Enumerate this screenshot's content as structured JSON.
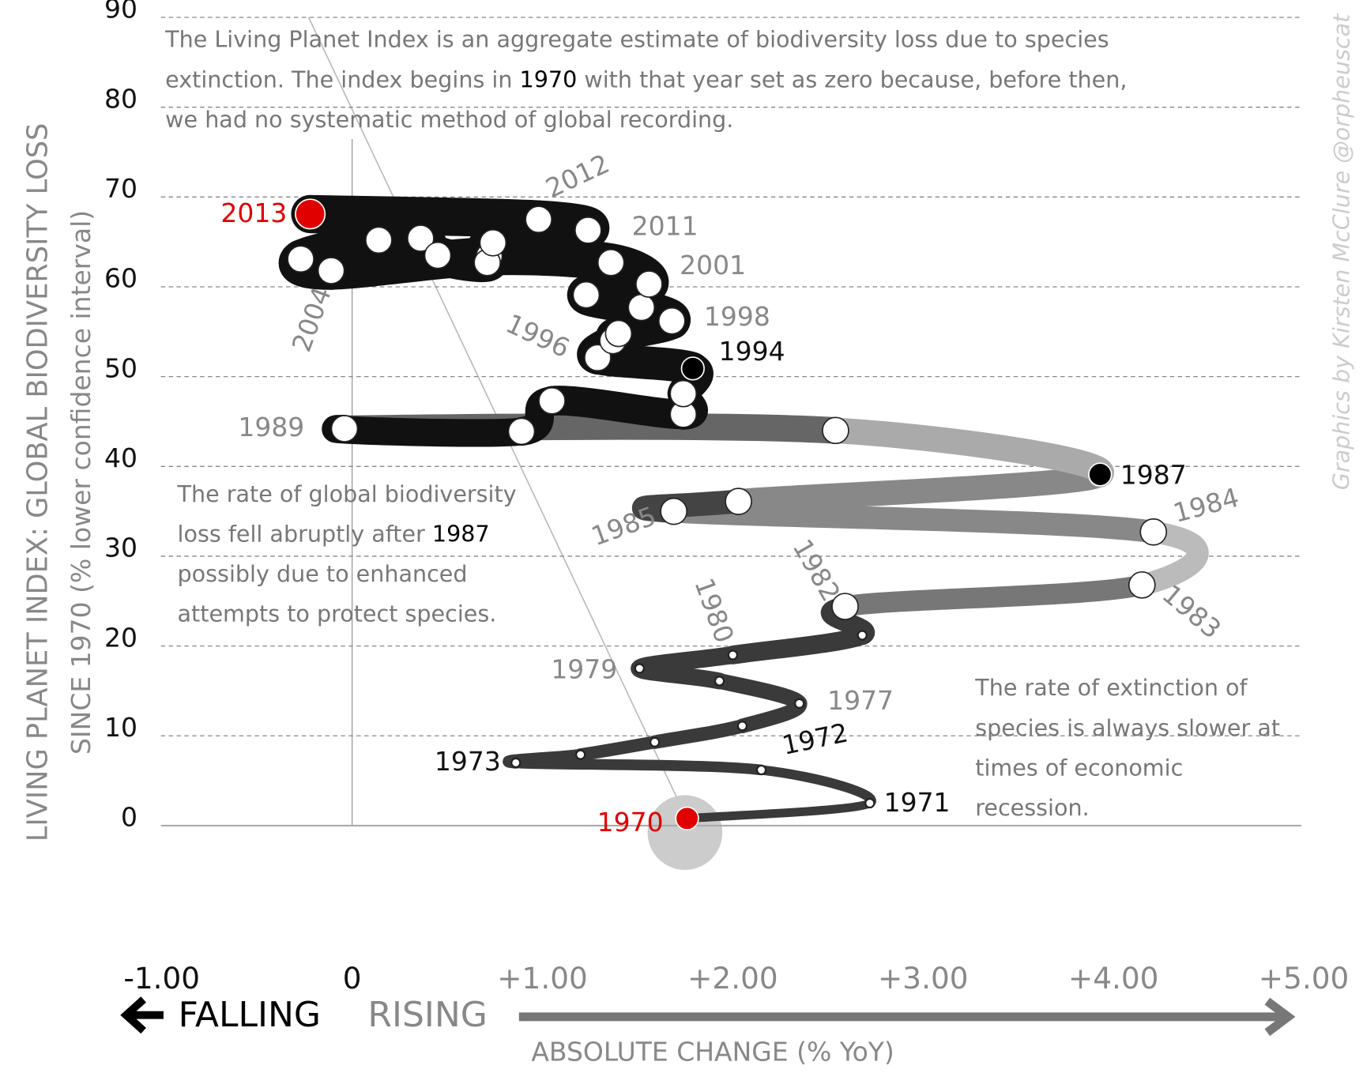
{
  "chart_data": {
    "type": "connected-scatter",
    "xlim": [
      -1,
      5
    ],
    "ylim": [
      0,
      90
    ],
    "xticks": [
      {
        "value": -1,
        "label": "-1.00"
      },
      0,
      {
        "value": 1,
        "label": "+1.00"
      },
      {
        "value": 2,
        "label": "+2.00"
      },
      {
        "value": 3,
        "label": "+3.00"
      },
      {
        "value": 4,
        "label": "+4.00"
      },
      {
        "value": 5,
        "label": "+5.00"
      }
    ],
    "yticks": [
      0,
      10,
      20,
      30,
      40,
      50,
      60,
      70,
      80,
      90
    ],
    "grid": true,
    "y_title": [
      "LIVING PLANET INDEX: GLOBAL BIODIVERSITY LOSS",
      "SINCE 1970 (% lower confidence interval)"
    ],
    "x_title": "ABSOLUTE CHANGE (% YoY)",
    "falling": "FALLING",
    "rising": "RISING",
    "credit": "Graphics by Kirsten McClure @orpheuscat",
    "x": [
      1.76,
      2.72,
      2.15,
      0.86,
      1.2,
      1.59,
      2.05,
      2.35,
      1.93,
      1.51,
      2.0,
      2.68,
      2.59,
      4.15,
      4.21,
      1.69,
      2.03,
      3.93,
      2.54,
      -0.04,
      0.89,
      1.05,
      1.74,
      1.74,
      1.79,
      1.29,
      1.37,
      1.4,
      1.68,
      1.52,
      1.23,
      1.56,
      1.36,
      0.72,
      -0.11,
      -0.27,
      0.14,
      0.36,
      0.45,
      0.71,
      0.74,
      1.24,
      0.98,
      -0.22
    ],
    "values": [
      0.8,
      2.5,
      6.2,
      7.0,
      7.9,
      9.3,
      11.1,
      13.6,
      16.1,
      17.5,
      19.0,
      21.2,
      24.4,
      26.8,
      32.7,
      35.0,
      36.1,
      39.1,
      44.0,
      44.2,
      43.9,
      47.3,
      45.8,
      48.1,
      50.9,
      52.1,
      54.0,
      54.8,
      56.2,
      57.7,
      59.1,
      60.3,
      62.7,
      63.4,
      61.8,
      63.1,
      65.2,
      65.4,
      63.5,
      62.7,
      64.9,
      66.3,
      67.5,
      68.1
    ],
    "point_colors": [
      "#e00000",
      "#ffffff",
      "#ffffff",
      "#ffffff",
      "#ffffff",
      "#ffffff",
      "#ffffff",
      "#ffffff",
      "#ffffff",
      "#ffffff",
      "#ffffff",
      "#ffffff",
      "#ffffff",
      "#ffffff",
      "#ffffff",
      "#ffffff",
      "#ffffff",
      "#000000",
      "#ffffff",
      "#ffffff",
      "#ffffff",
      "#ffffff",
      "#ffffff",
      "#ffffff",
      "#000000",
      "#ffffff",
      "#ffffff",
      "#ffffff",
      "#ffffff",
      "#ffffff",
      "#ffffff",
      "#ffffff",
      "#ffffff",
      "#ffffff",
      "#ffffff",
      "#ffffff",
      "#ffffff",
      "#ffffff",
      "#ffffff",
      "#ffffff",
      "#ffffff",
      "#ffffff",
      "#ffffff",
      "#e00000"
    ],
    "labels": [
      {
        "text": "1970",
        "color": "#e00000"
      },
      {
        "text": "1971",
        "color": "#111111"
      },
      {
        "text": "1972",
        "color": "#111111"
      },
      {
        "text": "1973",
        "color": "#111111"
      },
      null,
      null,
      null,
      {
        "text": "1977",
        "color": "#888888"
      },
      null,
      {
        "text": "1979",
        "color": "#888888"
      },
      {
        "text": "1980",
        "color": "#888888"
      },
      null,
      {
        "text": "1982",
        "color": "#888888"
      },
      {
        "text": "1983",
        "color": "#888888"
      },
      {
        "text": "1984",
        "color": "#888888"
      },
      {
        "text": "1985",
        "color": "#888888"
      },
      null,
      {
        "text": "1987",
        "color": "#111111"
      },
      null,
      {
        "text": "1989",
        "color": "#888888"
      },
      null,
      null,
      null,
      null,
      {
        "text": "1994",
        "color": "#111111"
      },
      null,
      {
        "text": "1996",
        "color": "#888888"
      },
      null,
      {
        "text": "1998",
        "color": "#888888"
      },
      null,
      null,
      {
        "text": "2001",
        "color": "#888888"
      },
      null,
      null,
      {
        "text": "2004",
        "color": "#888888"
      },
      null,
      null,
      null,
      null,
      null,
      null,
      {
        "text": "2011",
        "color": "#888888"
      },
      {
        "text": "2012",
        "color": "#888888"
      },
      {
        "text": "2013",
        "color": "#e00000"
      }
    ],
    "annotations": [
      {
        "lines": [
          [
            "The Living Planet Index is an aggregate estimate of biodiversity loss due to species"
          ],
          [
            "extinction. The index begins in ",
            "1970",
            " with that year set as zero because, before then,"
          ],
          [
            "we had no systematic method of global recording."
          ]
        ]
      },
      {
        "lines": [
          [
            "The rate of global biodiversity"
          ],
          [
            "loss fell abruptly after ",
            "1987"
          ],
          [
            "possibly due to enhanced"
          ],
          [
            "attempts to protect species."
          ]
        ]
      },
      {
        "lines": [
          [
            "The rate of extinction of"
          ],
          [
            "species is always slower at"
          ],
          [
            "times of economic"
          ],
          [
            "recession."
          ]
        ]
      }
    ]
  }
}
